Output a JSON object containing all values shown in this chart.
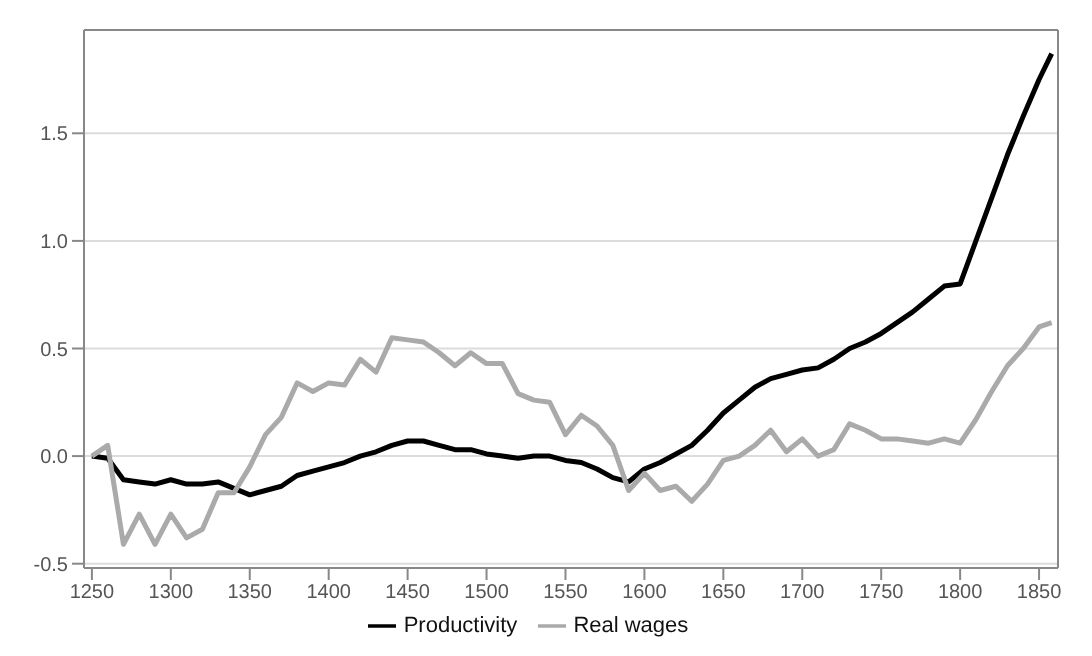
{
  "chart_data": {
    "type": "line",
    "x": [
      1250,
      1260,
      1270,
      1280,
      1290,
      1300,
      1310,
      1320,
      1330,
      1340,
      1350,
      1360,
      1370,
      1380,
      1390,
      1400,
      1410,
      1420,
      1430,
      1440,
      1450,
      1460,
      1470,
      1480,
      1490,
      1500,
      1510,
      1520,
      1530,
      1540,
      1550,
      1560,
      1570,
      1580,
      1590,
      1600,
      1610,
      1620,
      1630,
      1640,
      1650,
      1660,
      1670,
      1680,
      1690,
      1700,
      1710,
      1720,
      1730,
      1740,
      1750,
      1760,
      1770,
      1780,
      1790,
      1800,
      1810,
      1820,
      1830,
      1840,
      1850,
      1858
    ],
    "series": [
      {
        "name": "Productivity",
        "color": "#000000",
        "values": [
          0,
          -0.01,
          -0.11,
          -0.12,
          -0.13,
          -0.11,
          -0.13,
          -0.13,
          -0.12,
          -0.15,
          -0.18,
          -0.16,
          -0.14,
          -0.09,
          -0.07,
          -0.05,
          -0.03,
          0,
          0.02,
          0.05,
          0.07,
          0.07,
          0.05,
          0.03,
          0.03,
          0.01,
          0,
          -0.01,
          0,
          0,
          -0.02,
          -0.03,
          -0.06,
          -0.1,
          -0.12,
          -0.06,
          -0.03,
          0.01,
          0.05,
          0.12,
          0.2,
          0.26,
          0.32,
          0.36,
          0.38,
          0.4,
          0.41,
          0.45,
          0.5,
          0.53,
          0.57,
          0.62,
          0.67,
          0.73,
          0.79,
          0.8,
          1.0,
          1.2,
          1.4,
          1.58,
          1.75,
          1.87
        ]
      },
      {
        "name": "Real wages",
        "color": "#aaaaaa",
        "values": [
          0,
          0.05,
          -0.41,
          -0.27,
          -0.41,
          -0.27,
          -0.38,
          -0.34,
          -0.17,
          -0.17,
          -0.05,
          0.1,
          0.18,
          0.34,
          0.3,
          0.34,
          0.33,
          0.45,
          0.39,
          0.55,
          0.54,
          0.53,
          0.48,
          0.42,
          0.48,
          0.43,
          0.43,
          0.29,
          0.26,
          0.25,
          0.1,
          0.19,
          0.14,
          0.05,
          -0.16,
          -0.08,
          -0.16,
          -0.14,
          -0.21,
          -0.13,
          -0.02,
          0,
          0.05,
          0.12,
          0.02,
          0.08,
          0,
          0.03,
          0.15,
          0.12,
          0.08,
          0.08,
          0.07,
          0.06,
          0.08,
          0.06,
          0.17,
          0.3,
          0.42,
          0.5,
          0.6,
          0.62
        ]
      }
    ],
    "xlim": [
      1245,
      1862
    ],
    "xticks": [
      1250,
      1300,
      1350,
      1400,
      1450,
      1500,
      1550,
      1600,
      1650,
      1700,
      1750,
      1800,
      1850
    ],
    "ylim": [
      -0.52,
      1.98
    ],
    "yticks": [
      {
        "value": -0.5,
        "label": "-0.5"
      },
      {
        "value": 0,
        "label": "0.0"
      },
      {
        "value": 0.5,
        "label": "0.5"
      },
      {
        "value": 1,
        "label": "1.0"
      },
      {
        "value": 1.5,
        "label": "1.5"
      }
    ],
    "grid": "y",
    "legend": "bottom",
    "marker": "none",
    "line_style": "solid"
  }
}
